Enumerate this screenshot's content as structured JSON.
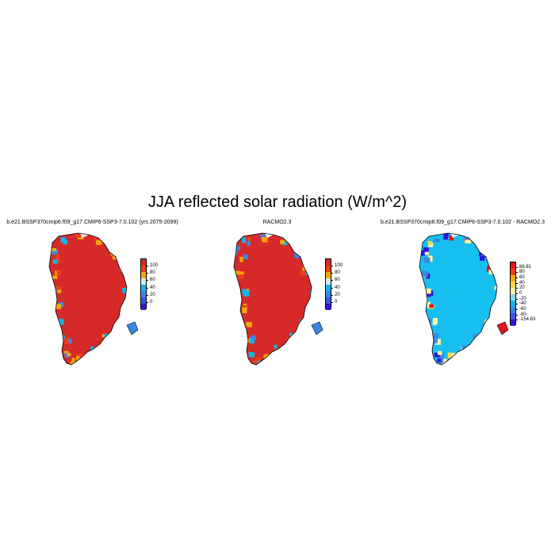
{
  "title": "JJA reflected solar radiation (W/m^2)",
  "panels": [
    {
      "title": "b.e21.BSSP370cmip6.f09_g17.CMIP6-SSP3-7.0.102 (yrs 2075-2099)",
      "colorbar": {
        "labels": [
          "100",
          "80",
          "60",
          "40",
          "20",
          "0"
        ],
        "colors": [
          "#d62a2a",
          "#ee3d1a",
          "#f5a80a",
          "#d9eaee",
          "#16b4e8",
          "#3a86e8",
          "#3d55e0",
          "#3016d8"
        ]
      },
      "map": {
        "dominant": "#d62a2a",
        "coast": [
          "#f5a80a",
          "#ee3d1a",
          "#16b4e8",
          "#3a86e8"
        ]
      }
    },
    {
      "title": "RACMO2.3",
      "colorbar": {
        "labels": [
          "100",
          "80",
          "60",
          "40",
          "20",
          "0"
        ],
        "colors": [
          "#d62a2a",
          "#ee3d1a",
          "#f5a80a",
          "#d9eaee",
          "#16b4e8",
          "#3a86e8",
          "#3d55e0",
          "#3016d8"
        ]
      },
      "map": {
        "dominant": "#d62a2a",
        "coast": [
          "#f5a80a",
          "#ee3d1a",
          "#16b4e8",
          "#3a86e8"
        ]
      }
    },
    {
      "title": "b.e21.BSSP370cmip6.f09_g17.CMIP6-SSP3-7.0.102 - RACMO2.3",
      "colorbar": {
        "labels": [
          "86.81",
          "80",
          "60",
          "40",
          "20",
          "0",
          "-20",
          "-40",
          "-60",
          "-80",
          "-154.63"
        ],
        "colors": [
          "#e3141c",
          "#ee3d1a",
          "#f5a80a",
          "#fad44a",
          "#fbf6a0",
          "#8fd8f5",
          "#16b4e8",
          "#3a86e8",
          "#3d55e0",
          "#3016d8"
        ]
      },
      "map": {
        "dominant": "#16bff0",
        "coast": [
          "#fbf6a0",
          "#fad44a",
          "#3a86e8",
          "#3016d8",
          "#e3141c"
        ]
      }
    }
  ]
}
